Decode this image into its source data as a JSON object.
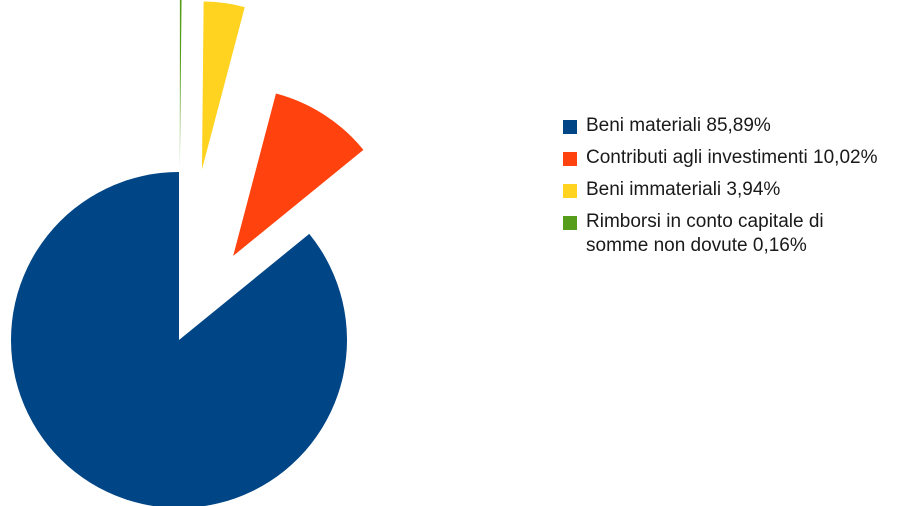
{
  "chart_data": {
    "type": "pie",
    "title": "",
    "exploded": true,
    "legend_position": "right",
    "slices": [
      {
        "label": "Beni materiali 85,89%",
        "value": 85.89,
        "color": "#004586"
      },
      {
        "label": "Contributi agli investimenti 10,02%",
        "value": 10.02,
        "color": "#ff420e"
      },
      {
        "label": "Beni immateriali 3,94%",
        "value": 3.94,
        "color": "#ffd320"
      },
      {
        "label": "Rimborsi in conto capitale di somme non dovute 0,16%",
        "value": 0.16,
        "color": "#579d1c"
      }
    ]
  }
}
